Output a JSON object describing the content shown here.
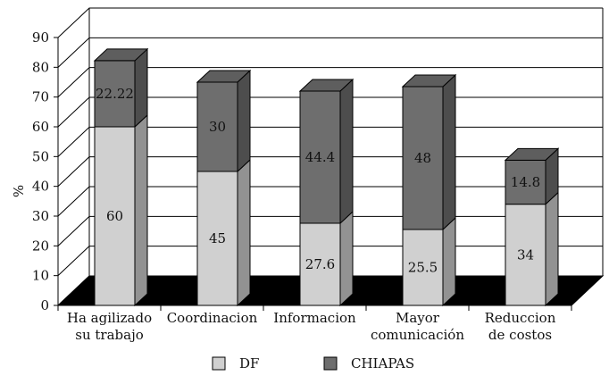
{
  "chart_data": {
    "type": "bar",
    "stacked": true,
    "three_d": true,
    "title": "",
    "xlabel": "",
    "ylabel": "%",
    "ylim": [
      0,
      90
    ],
    "yticks": [
      0,
      10,
      20,
      30,
      40,
      50,
      60,
      70,
      80,
      90
    ],
    "grid": true,
    "legend_position": "bottom",
    "categories": [
      [
        "Ha agilizado",
        "su trabajo"
      ],
      [
        "Coordinacion"
      ],
      [
        "Informacion"
      ],
      [
        "Mayor",
        "comunicación"
      ],
      [
        "Reduccion",
        "de costos"
      ]
    ],
    "series": [
      {
        "name": "DF",
        "values": [
          60,
          45,
          27.6,
          25.5,
          34
        ],
        "labels": [
          "60",
          "45",
          "27.6",
          "25.5",
          "34"
        ],
        "color": "#d0d0d0"
      },
      {
        "name": "CHIAPAS",
        "values": [
          22.22,
          30,
          44.4,
          48,
          14.8
        ],
        "labels": [
          "22.22",
          "30",
          "44.4",
          "48",
          "14.8"
        ],
        "color": "#6e6e6e"
      }
    ],
    "floor_color": "#000000"
  }
}
